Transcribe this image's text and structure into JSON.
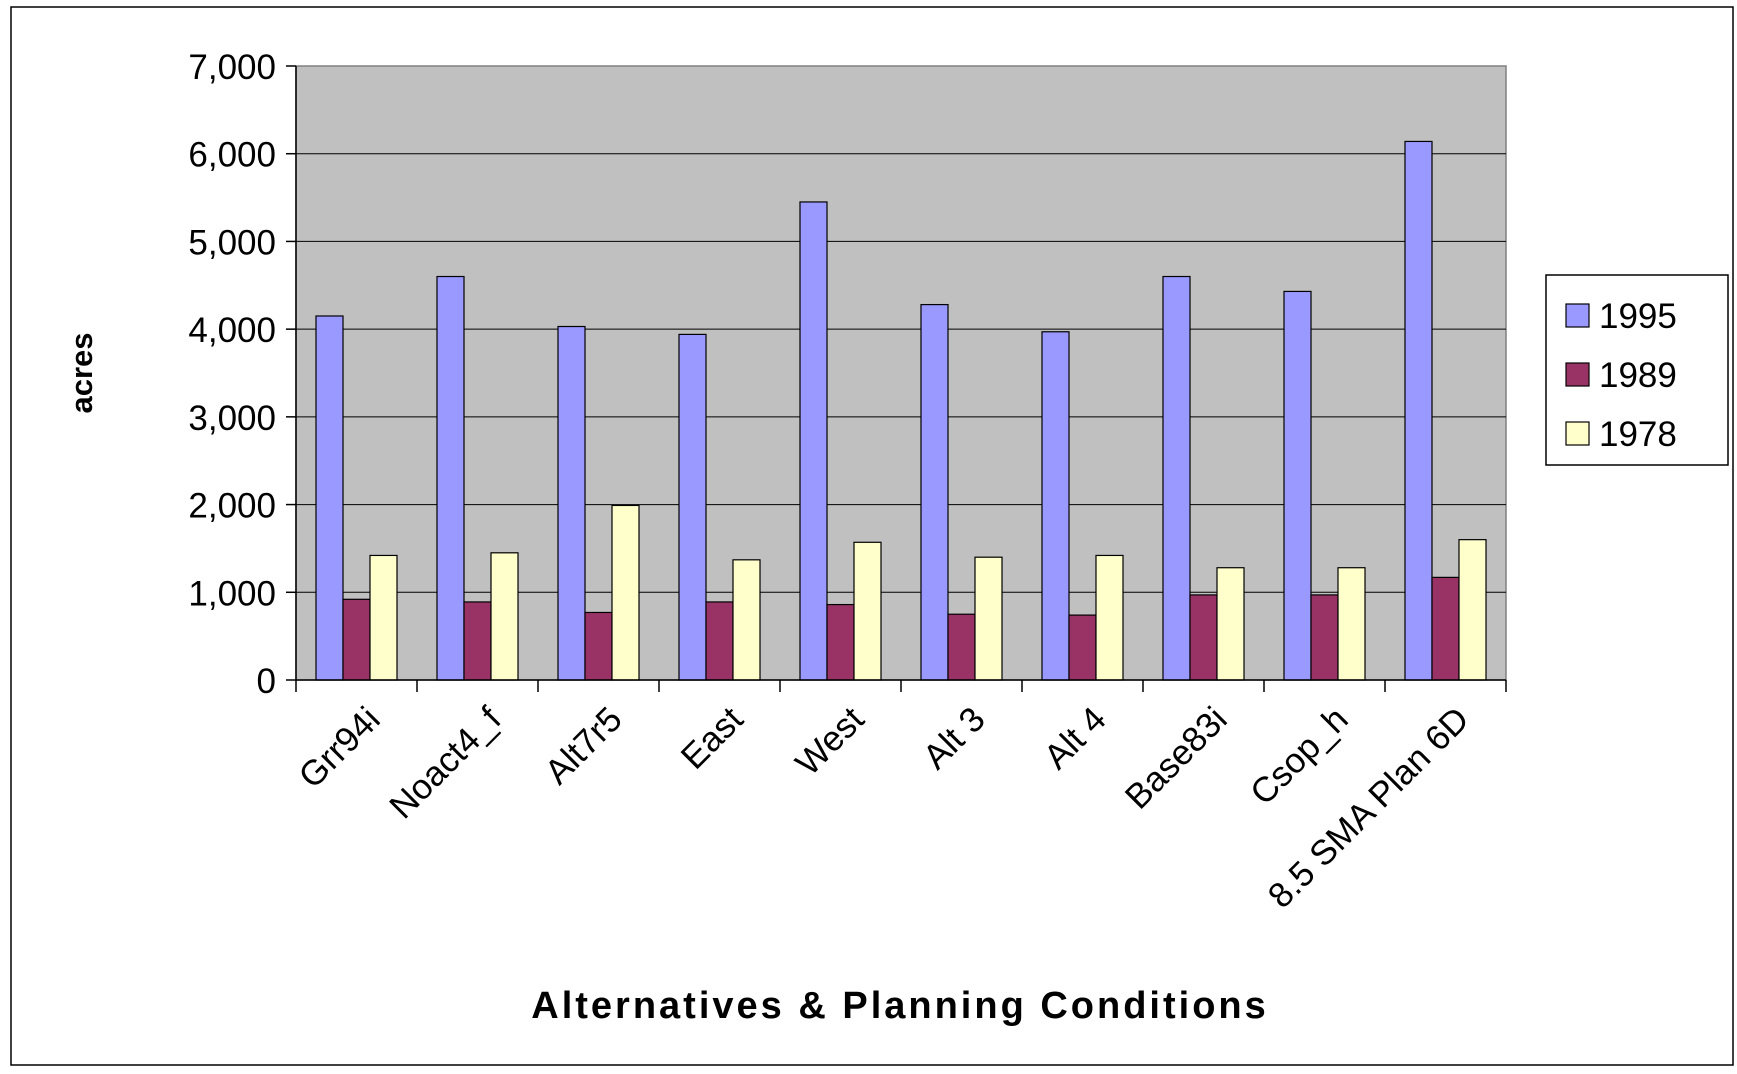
{
  "chart_data": {
    "type": "bar",
    "title": "",
    "xlabel": "Alternatives & Planning Conditions",
    "ylabel": "acres",
    "ylim": [
      0,
      7000
    ],
    "yticks": [
      0,
      1000,
      2000,
      3000,
      4000,
      5000,
      6000,
      7000
    ],
    "ytick_labels": [
      "0",
      "1,000",
      "2,000",
      "3,000",
      "4,000",
      "5,000",
      "6,000",
      "7,000"
    ],
    "grid": true,
    "legend_position": "right",
    "categories": [
      "Grr94i",
      "Noact4_f",
      "Alt7r5",
      "East",
      "West",
      "Alt 3",
      "Alt 4",
      "Base83i",
      "Csop_h",
      "8.5 SMA Plan 6D"
    ],
    "series": [
      {
        "name": "1995",
        "color": "#9999ff",
        "values": [
          4150,
          4600,
          4030,
          3940,
          5450,
          4280,
          3970,
          4600,
          4430,
          6140
        ]
      },
      {
        "name": "1989",
        "color": "#993366",
        "values": [
          920,
          890,
          770,
          890,
          860,
          750,
          740,
          970,
          970,
          1170
        ]
      },
      {
        "name": "1978",
        "color": "#ffffcc",
        "values": [
          1420,
          1450,
          1990,
          1370,
          1570,
          1400,
          1420,
          1280,
          1280,
          1600
        ]
      }
    ]
  }
}
